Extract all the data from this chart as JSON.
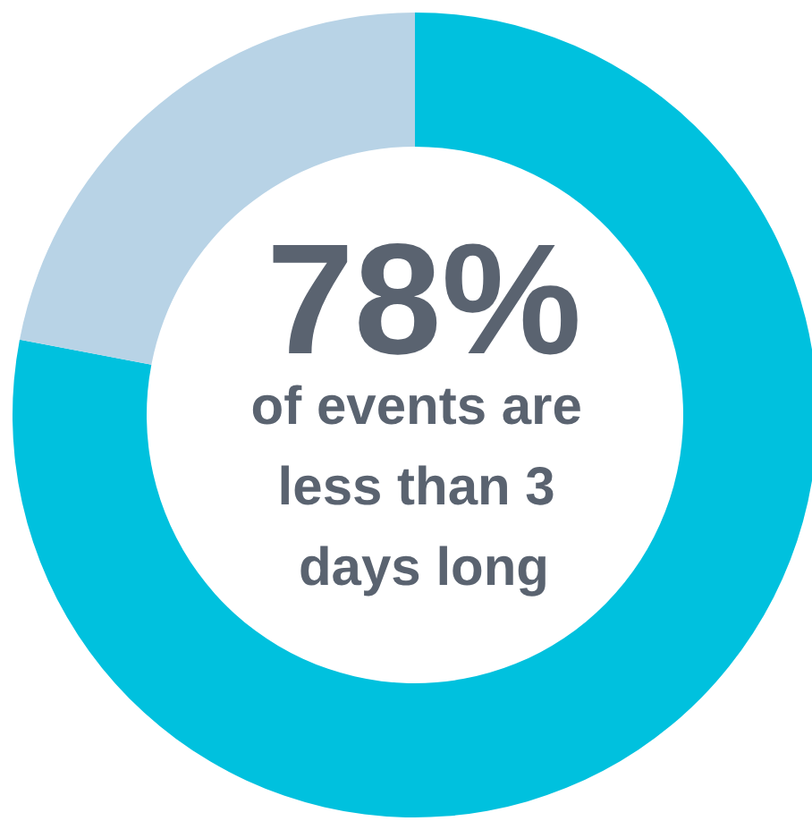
{
  "chart_data": {
    "type": "donut",
    "title": "78%",
    "subtitle": "of events are less than 3 days long",
    "categories": [
      null,
      null
    ],
    "values": [
      78,
      22
    ],
    "colors": [
      "#00c1de",
      "#b8d3e6"
    ]
  }
}
